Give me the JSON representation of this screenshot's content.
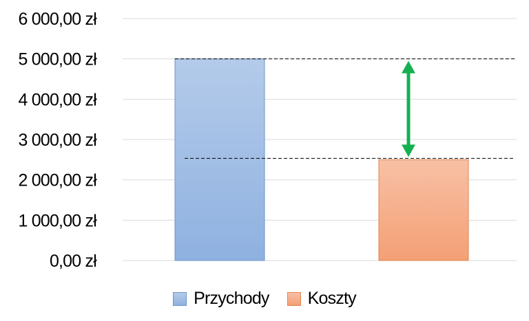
{
  "chart_data": {
    "type": "bar",
    "categories": [
      "Przychody",
      "Koszty"
    ],
    "values": [
      5000,
      2500
    ],
    "y_tick_labels": [
      "0,00 zł",
      "1 000,00 zł",
      "2 000,00 zł",
      "3 000,00 zł",
      "4 000,00 zł",
      "5 000,00 zł",
      "6 000,00 zł"
    ],
    "ylim": [
      0,
      6000
    ],
    "ytick_step": 1000,
    "grid": true,
    "legend": {
      "placement": "bottom",
      "entries": [
        "Przychody",
        "Koszty"
      ]
    },
    "colors": {
      "Przychody": {
        "fill_top": "#b4cbea",
        "fill_bottom": "#8fb1e0",
        "stroke": "#6e93c7"
      },
      "Koszty": {
        "fill_top": "#f8c0a5",
        "fill_bottom": "#f4a075",
        "stroke": "#e0854f"
      },
      "arrow": "#16b050",
      "gridline": "#d9d9d9",
      "reference_line": "#000000"
    },
    "reference_lines": [
      5000,
      2500
    ],
    "annotation": {
      "type": "double-arrow",
      "from": 2500,
      "to": 5000
    }
  }
}
